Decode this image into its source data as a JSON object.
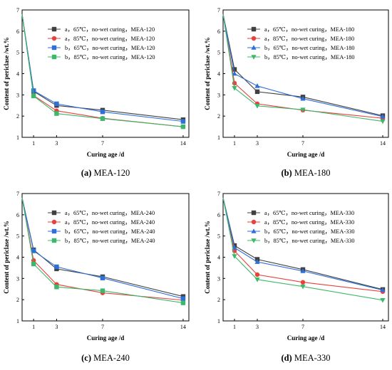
{
  "colors": {
    "series_1": "#404040",
    "series_2": "#e8413a",
    "series_3": "#2f6fd8",
    "series_4": "#3cb86a"
  },
  "chart_data": [
    {
      "type": "line",
      "caption_label": "(a)",
      "caption_text": "MEA-120",
      "xlabel": "Curing age /d",
      "ylabel": "Content of periclase /wt.%",
      "xticks": [
        1,
        3,
        7,
        14
      ],
      "yticks": [
        1,
        2,
        3,
        4,
        5,
        6,
        7
      ],
      "xlim": [
        0,
        14.5
      ],
      "ylim": [
        1,
        7
      ],
      "legend_position": "top-right",
      "series": [
        {
          "name": "a，65℃，no-wet curing，MEA-120",
          "marker": "square",
          "x": [
            0,
            1,
            3,
            7,
            14
          ],
          "y": [
            6.8,
            3.17,
            2.5,
            2.28,
            1.83
          ]
        },
        {
          "name": "a，85℃，no-wet curing，MEA-120",
          "marker": "circle",
          "x": [
            0,
            1,
            3,
            7,
            14
          ],
          "y": [
            6.8,
            2.97,
            2.25,
            1.9,
            1.5
          ]
        },
        {
          "name": "b，65℃，no-wet curing，MEA-120",
          "marker": "square",
          "x": [
            0,
            1,
            3,
            7,
            14
          ],
          "y": [
            6.8,
            3.2,
            2.58,
            2.2,
            1.75
          ]
        },
        {
          "name": "b，85℃，no-wet curing，MEA-120",
          "marker": "square",
          "x": [
            0,
            1,
            3,
            7,
            14
          ],
          "y": [
            6.8,
            2.95,
            2.12,
            1.88,
            1.5
          ]
        }
      ]
    },
    {
      "type": "line",
      "caption_label": "(b)",
      "caption_text": "MEA-180",
      "xlabel": "Curing age /d",
      "ylabel": "Content of periclase /wt.%",
      "xticks": [
        1,
        3,
        7,
        14
      ],
      "yticks": [
        1,
        2,
        3,
        4,
        5,
        6,
        7
      ],
      "xlim": [
        0,
        14.5
      ],
      "ylim": [
        1,
        7
      ],
      "legend_position": "top-right",
      "series": [
        {
          "name": "a，65℃，no-wet curing，MEA-180",
          "marker": "square",
          "x": [
            0,
            1,
            3,
            7,
            14
          ],
          "y": [
            6.8,
            4.2,
            3.15,
            2.9,
            2.02
          ]
        },
        {
          "name": "a，85℃，no-wet curing，MEA-180",
          "marker": "circle",
          "x": [
            0,
            1,
            3,
            7,
            14
          ],
          "y": [
            6.8,
            3.55,
            2.58,
            2.28,
            1.9
          ]
        },
        {
          "name": "b，65℃，no-wet curing，MEA-180",
          "marker": "triangle-up",
          "x": [
            0,
            1,
            3,
            7,
            14
          ],
          "y": [
            6.8,
            4.0,
            3.42,
            2.82,
            1.98
          ]
        },
        {
          "name": "b，85℃，no-wet curing，MEA-180",
          "marker": "triangle-down",
          "x": [
            0,
            1,
            3,
            7,
            14
          ],
          "y": [
            6.8,
            3.32,
            2.48,
            2.3,
            1.75
          ]
        }
      ]
    },
    {
      "type": "line",
      "caption_label": "(c)",
      "caption_text": "MEA-240",
      "xlabel": "Curing age /d",
      "ylabel": "Content of periclase /wt.%",
      "xticks": [
        1,
        3,
        7,
        14
      ],
      "yticks": [
        1,
        2,
        3,
        4,
        5,
        6,
        7
      ],
      "xlim": [
        0,
        14.5
      ],
      "ylim": [
        1,
        7
      ],
      "legend_position": "top-right",
      "series": [
        {
          "name": "a，65℃，no-wet curing，MEA-240",
          "marker": "square",
          "x": [
            0,
            1,
            3,
            7,
            14
          ],
          "y": [
            6.8,
            4.35,
            3.45,
            3.08,
            2.15
          ]
        },
        {
          "name": "a，85℃，no-wet curing，MEA-240",
          "marker": "circle",
          "x": [
            0,
            1,
            3,
            7,
            14
          ],
          "y": [
            6.8,
            3.85,
            2.72,
            2.32,
            1.98
          ]
        },
        {
          "name": "b，65℃，no-wet curing，MEA-240",
          "marker": "square",
          "x": [
            0,
            1,
            3,
            7,
            14
          ],
          "y": [
            6.8,
            4.3,
            3.55,
            3.02,
            2.05
          ]
        },
        {
          "name": "b，85℃，no-wet curing，MEA-240",
          "marker": "square",
          "x": [
            0,
            1,
            3,
            7,
            14
          ],
          "y": [
            6.8,
            3.68,
            2.6,
            2.42,
            1.85
          ]
        }
      ]
    },
    {
      "type": "line",
      "caption_label": "(d)",
      "caption_text": "MEA-330",
      "xlabel": "Curing age /d",
      "ylabel": "Content of periclase /wt.%",
      "xticks": [
        1,
        3,
        7,
        14
      ],
      "yticks": [
        1,
        2,
        3,
        4,
        5,
        6,
        7
      ],
      "xlim": [
        0,
        14.5
      ],
      "ylim": [
        1,
        7
      ],
      "legend_position": "top-right",
      "series": [
        {
          "name": "a，65℃，no-wet curing，MEA-330",
          "marker": "square",
          "x": [
            0,
            1,
            3,
            7,
            14
          ],
          "y": [
            6.8,
            4.55,
            3.9,
            3.42,
            2.48
          ]
        },
        {
          "name": "a，85℃，no-wet curing，MEA-330",
          "marker": "circle",
          "x": [
            0,
            1,
            3,
            7,
            14
          ],
          "y": [
            6.8,
            4.3,
            3.18,
            2.82,
            2.38
          ]
        },
        {
          "name": "b，65℃，no-wet curing，MEA-330",
          "marker": "triangle-up",
          "x": [
            0,
            1,
            3,
            7,
            14
          ],
          "y": [
            6.8,
            4.45,
            3.78,
            3.35,
            2.45
          ]
        },
        {
          "name": "b，85℃，no-wet curing，MEA-330",
          "marker": "triangle-down",
          "x": [
            0,
            1,
            3,
            7,
            14
          ],
          "y": [
            6.8,
            4.05,
            2.95,
            2.62,
            1.98
          ]
        }
      ]
    }
  ]
}
